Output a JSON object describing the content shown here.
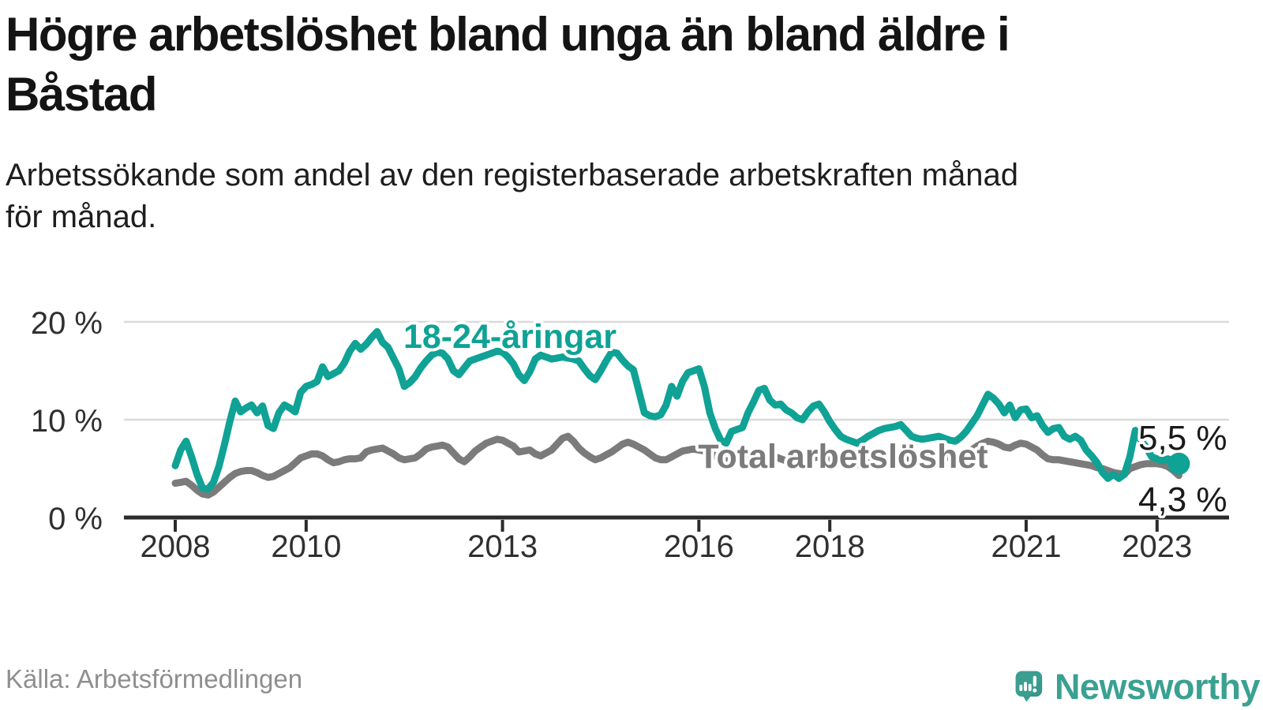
{
  "page": {
    "title_lines": [
      "Högre arbetslöshet bland unga än bland äldre i",
      "Båstad"
    ],
    "subtitle_lines": [
      "Arbetssökande som andel av den registerbaserade arbetskraften månad",
      "för månad."
    ],
    "source": "Källa: Arbetsförmedlingen",
    "brand": {
      "name": "Newsworthy",
      "icon": "speech-bubble-bar-chart-icon",
      "icon_color": "#3b9e91",
      "text_color": "#3aa192"
    }
  },
  "chart_data": {
    "type": "line",
    "title": "Högre arbetslöshet bland unga än bland äldre i Båstad",
    "subtitle": "Arbetssökande som andel av den registerbaserade arbetskraften månad för månad.",
    "x_interval": "monthly",
    "x_start": "2008-01",
    "x_end": "2023-05",
    "grid": "horizontal",
    "ylim": [
      0,
      21.5
    ],
    "axis_color": "#2b2b2b",
    "gridline_color": "#dadada",
    "x_ticks": [
      {
        "label": "2008",
        "month_offset": 0
      },
      {
        "label": "2010",
        "month_offset": 24
      },
      {
        "label": "2013",
        "month_offset": 60
      },
      {
        "label": "2016",
        "month_offset": 96
      },
      {
        "label": "2018",
        "month_offset": 120
      },
      {
        "label": "2021",
        "month_offset": 156
      },
      {
        "label": "2023",
        "month_offset": 180
      }
    ],
    "y_ticks": [
      {
        "label": "20 %",
        "value": 20
      },
      {
        "label": "10 %",
        "value": 10
      },
      {
        "label": "0 %",
        "value": 0
      }
    ],
    "series": [
      {
        "name": "18-24-åringar",
        "color": "#0fa295",
        "end_label": "5,5 %",
        "end_value": 5.5,
        "end_marker": "dot",
        "values": [
          5.3,
          6.9,
          7.8,
          6.2,
          4.4,
          3.0,
          2.9,
          3.6,
          5.2,
          7.4,
          9.8,
          11.9,
          10.8,
          11.2,
          11.5,
          10.7,
          11.4,
          9.4,
          9.1,
          10.7,
          11.5,
          11.2,
          10.8,
          12.8,
          13.4,
          13.6,
          13.9,
          15.4,
          14.4,
          14.7,
          15.0,
          15.8,
          17.0,
          17.8,
          17.2,
          17.7,
          18.4,
          19.0,
          17.9,
          17.4,
          16.3,
          15.2,
          13.4,
          13.8,
          14.4,
          15.3,
          16.0,
          16.6,
          16.9,
          16.8,
          16.2,
          15.0,
          14.6,
          15.3,
          16.0,
          16.2,
          16.4,
          16.6,
          16.8,
          17.0,
          16.9,
          16.4,
          15.7,
          14.6,
          14.0,
          14.9,
          16.2,
          16.6,
          16.4,
          16.2,
          16.3,
          16.4,
          16.3,
          16.2,
          16.0,
          15.2,
          14.5,
          14.1,
          15.0,
          16.0,
          16.9,
          16.8,
          16.1,
          15.5,
          15.1,
          12.9,
          10.7,
          10.4,
          10.3,
          10.5,
          11.5,
          13.4,
          12.4,
          13.9,
          14.8,
          15.0,
          15.2,
          13.4,
          10.7,
          9.1,
          7.9,
          7.6,
          8.8,
          9.0,
          9.2,
          10.7,
          11.8,
          13.0,
          13.2,
          12.0,
          11.5,
          11.6,
          11.0,
          10.7,
          10.2,
          10.0,
          10.8,
          11.4,
          11.6,
          10.8,
          9.8,
          9.0,
          8.3,
          8.0,
          7.8,
          7.6,
          7.9,
          8.3,
          8.6,
          8.9,
          9.1,
          9.2,
          9.3,
          9.5,
          8.9,
          8.3,
          8.1,
          8.0,
          8.1,
          8.2,
          8.3,
          8.1,
          7.9,
          7.8,
          8.2,
          8.8,
          9.6,
          10.4,
          11.5,
          12.6,
          12.2,
          11.6,
          10.7,
          11.5,
          10.2,
          11.0,
          11.1,
          10.2,
          10.4,
          9.4,
          8.7,
          9.1,
          9.2,
          8.3,
          8.0,
          8.3,
          7.9,
          6.9,
          6.3,
          5.6,
          4.6,
          4.0,
          4.4,
          4.0,
          4.4,
          6.2,
          8.9,
          7.9,
          7.2,
          6.2,
          6.0,
          5.8,
          6.0,
          5.7,
          5.5
        ]
      },
      {
        "name": "Total arbetslöshet",
        "color": "#7b7b7b",
        "end_label": "4,3 %",
        "end_value": 4.3,
        "end_marker": "none",
        "values": [
          3.5,
          3.6,
          3.7,
          3.3,
          2.8,
          2.4,
          2.3,
          2.6,
          3.1,
          3.6,
          4.1,
          4.5,
          4.7,
          4.8,
          4.8,
          4.6,
          4.3,
          4.1,
          4.2,
          4.5,
          4.8,
          5.1,
          5.6,
          6.1,
          6.3,
          6.5,
          6.5,
          6.3,
          5.9,
          5.6,
          5.7,
          5.9,
          6.0,
          6.0,
          6.1,
          6.7,
          6.9,
          7.0,
          7.1,
          6.8,
          6.5,
          6.1,
          5.9,
          6.0,
          6.1,
          6.5,
          7.0,
          7.2,
          7.3,
          7.4,
          7.2,
          6.6,
          6.0,
          5.7,
          6.2,
          6.8,
          7.2,
          7.6,
          7.8,
          8.0,
          7.9,
          7.6,
          7.3,
          6.7,
          6.8,
          6.9,
          6.5,
          6.3,
          6.6,
          6.9,
          7.5,
          8.1,
          8.3,
          7.8,
          7.1,
          6.6,
          6.2,
          5.9,
          6.1,
          6.4,
          6.7,
          7.1,
          7.5,
          7.7,
          7.5,
          7.2,
          6.9,
          6.5,
          6.1,
          5.9,
          5.9,
          6.2,
          6.5,
          6.8,
          6.9,
          7.0,
          6.9,
          6.8,
          6.6,
          6.3,
          6.0,
          5.8,
          5.7,
          5.9,
          6.0,
          6.1,
          6.2,
          6.3,
          6.4,
          6.3,
          6.2,
          6.0,
          5.8,
          5.7,
          5.8,
          5.9,
          6.0,
          6.1,
          6.2,
          6.2,
          6.1,
          6.0,
          5.9,
          5.7,
          5.5,
          5.4,
          5.5,
          5.6,
          5.6,
          5.7,
          5.8,
          5.9,
          6.0,
          6.0,
          5.9,
          5.8,
          5.7,
          5.7,
          5.8,
          5.9,
          6.0,
          6.1,
          6.2,
          6.3,
          6.4,
          6.6,
          6.9,
          7.3,
          7.6,
          7.8,
          7.7,
          7.5,
          7.2,
          7.1,
          7.4,
          7.6,
          7.5,
          7.2,
          6.9,
          6.4,
          6.0,
          5.9,
          5.9,
          5.8,
          5.7,
          5.6,
          5.5,
          5.4,
          5.3,
          5.1,
          5.0,
          4.8,
          4.6,
          4.5,
          4.4,
          5.0,
          5.2,
          5.4,
          5.5,
          5.5,
          5.5,
          5.4,
          5.2,
          4.8,
          4.3
        ]
      }
    ]
  }
}
